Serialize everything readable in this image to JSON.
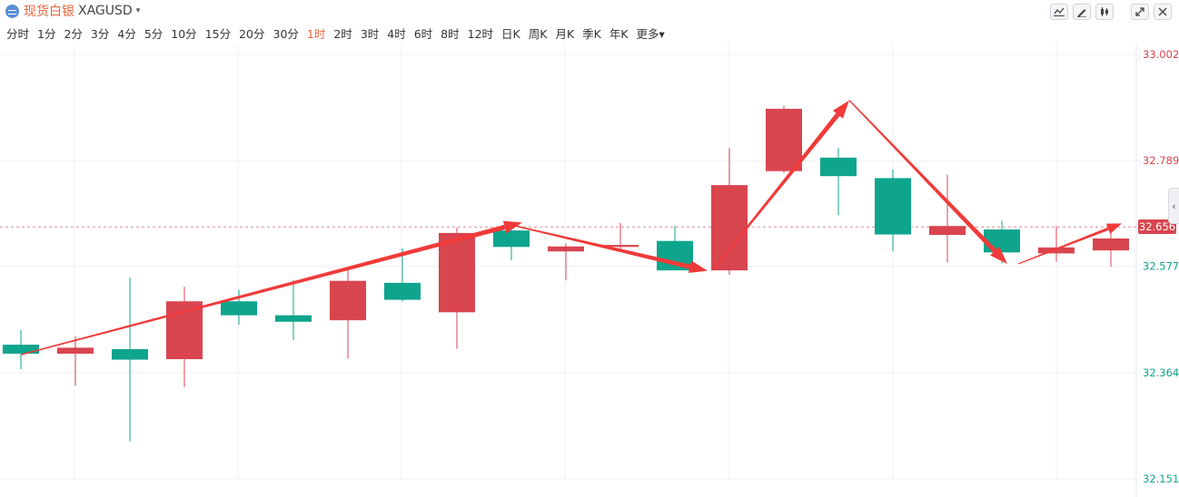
{
  "header": {
    "name": "现货白银",
    "symbol": "XAGUSD",
    "caret": "▾",
    "tools": [
      "line-chart-icon",
      "draw-icon",
      "indicator-icon",
      "expand-icon",
      "close-icon"
    ]
  },
  "periods": [
    "分时",
    "1分",
    "2分",
    "3分",
    "4分",
    "5分",
    "10分",
    "15分",
    "20分",
    "30分",
    "1时",
    "2时",
    "3时",
    "4时",
    "6时",
    "8时",
    "12时",
    "日K",
    "周K",
    "月K",
    "季K",
    "年K",
    "更多▾"
  ],
  "active_period": "1时",
  "colors": {
    "up": "#d9454f",
    "down": "#0ea58c",
    "accent": "#e8643c",
    "arrow": "#f03a3a"
  },
  "collapse_glyph": "‹",
  "chart_data": {
    "type": "candlestick",
    "ylim": [
      32.151,
      33.002
    ],
    "yticks": [
      {
        "value": 33.002,
        "label": "33.002"
      },
      {
        "value": 32.789,
        "label": "32.789"
      },
      {
        "value": 32.577,
        "label": "32.577"
      },
      {
        "value": 32.364,
        "label": "32.364"
      },
      {
        "value": 32.151,
        "label": "32.151"
      }
    ],
    "last_price": {
      "value": 32.656,
      "label": "32.656"
    },
    "candles": [
      {
        "o": 32.42,
        "h": 32.45,
        "l": 32.371,
        "c": 32.402
      },
      {
        "o": 32.402,
        "h": 32.437,
        "l": 32.338,
        "c": 32.414
      },
      {
        "o": 32.411,
        "h": 32.555,
        "l": 32.226,
        "c": 32.39
      },
      {
        "o": 32.391,
        "h": 32.536,
        "l": 32.335,
        "c": 32.507
      },
      {
        "o": 32.507,
        "h": 32.53,
        "l": 32.46,
        "c": 32.479
      },
      {
        "o": 32.479,
        "h": 32.55,
        "l": 32.429,
        "c": 32.466
      },
      {
        "o": 32.469,
        "h": 32.575,
        "l": 32.392,
        "c": 32.548
      },
      {
        "o": 32.544,
        "h": 32.613,
        "l": 32.507,
        "c": 32.51
      },
      {
        "o": 32.485,
        "h": 32.655,
        "l": 32.412,
        "c": 32.644
      },
      {
        "o": 32.649,
        "h": 32.665,
        "l": 32.589,
        "c": 32.616
      },
      {
        "o": 32.607,
        "h": 32.623,
        "l": 32.549,
        "c": 32.617
      },
      {
        "o": 32.616,
        "h": 32.664,
        "l": 32.606,
        "c": 32.62
      },
      {
        "o": 32.628,
        "h": 32.659,
        "l": 32.57,
        "c": 32.569
      },
      {
        "o": 32.569,
        "h": 32.814,
        "l": 32.56,
        "c": 32.74
      },
      {
        "o": 32.768,
        "h": 32.899,
        "l": 32.764,
        "c": 32.893
      },
      {
        "o": 32.795,
        "h": 32.815,
        "l": 32.68,
        "c": 32.758
      },
      {
        "o": 32.754,
        "h": 32.771,
        "l": 32.607,
        "c": 32.641
      },
      {
        "o": 32.64,
        "h": 32.761,
        "l": 32.585,
        "c": 32.658
      },
      {
        "o": 32.651,
        "h": 32.668,
        "l": 32.583,
        "c": 32.605
      },
      {
        "o": 32.603,
        "h": 32.658,
        "l": 32.586,
        "c": 32.615
      },
      {
        "o": 32.609,
        "h": 32.657,
        "l": 32.576,
        "c": 32.633
      }
    ],
    "arrows": [
      {
        "from": [
          0.0,
          32.4
        ],
        "to": [
          9.2,
          32.665
        ],
        "thick": true
      },
      {
        "from": [
          9.0,
          32.66
        ],
        "to": [
          12.6,
          32.568
        ],
        "thick": true
      },
      {
        "from": [
          12.7,
          32.57
        ],
        "to": [
          15.2,
          32.91
        ],
        "thick": true
      },
      {
        "from": [
          15.2,
          32.91
        ],
        "to": [
          18.1,
          32.582
        ],
        "thick": true
      },
      {
        "from": [
          18.3,
          32.582
        ],
        "to": [
          20.2,
          32.663
        ],
        "thick": false
      }
    ]
  }
}
